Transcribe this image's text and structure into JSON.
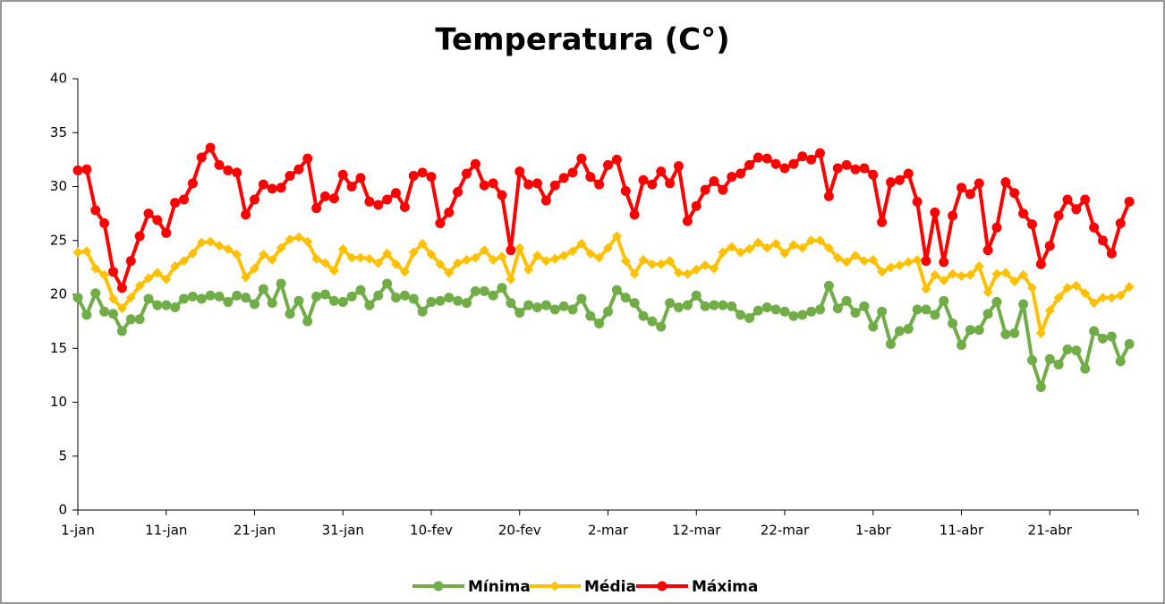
{
  "chart_data": {
    "type": "line",
    "title": "Temperatura (C°)",
    "categories": [
      "1-jan",
      null,
      null,
      null,
      null,
      null,
      null,
      null,
      null,
      null,
      "11-jan",
      null,
      null,
      null,
      null,
      null,
      null,
      null,
      null,
      null,
      "21-jan",
      null,
      null,
      null,
      null,
      null,
      null,
      null,
      null,
      null,
      "31-jan",
      null,
      null,
      null,
      null,
      null,
      null,
      null,
      null,
      null,
      "10-fev",
      null,
      null,
      null,
      null,
      null,
      null,
      null,
      null,
      null,
      "20-fev",
      null,
      null,
      null,
      null,
      null,
      null,
      null,
      null,
      null,
      "2-mar",
      null,
      null,
      null,
      null,
      null,
      null,
      null,
      null,
      null,
      "12-mar",
      null,
      null,
      null,
      null,
      null,
      null,
      null,
      null,
      null,
      "22-mar",
      null,
      null,
      null,
      null,
      null,
      null,
      null,
      null,
      null,
      "1-abr",
      null,
      null,
      null,
      null,
      null,
      null,
      null,
      null,
      null,
      "11-abr",
      null,
      null,
      null,
      null,
      null,
      null,
      null,
      null,
      null,
      "21-abr",
      null,
      null,
      null,
      null,
      null,
      null,
      null,
      null,
      null
    ],
    "series": [
      {
        "name": "Mínima",
        "color": "#70ad47",
        "marker": "circle",
        "values": [
          19.7,
          18.1,
          20.1,
          18.4,
          18.2,
          16.6,
          17.7,
          17.7,
          19.6,
          19.0,
          19.0,
          18.8,
          19.6,
          19.8,
          19.6,
          19.9,
          19.8,
          19.3,
          19.9,
          19.7,
          19.1,
          20.5,
          19.2,
          21.0,
          18.2,
          19.4,
          17.5,
          19.8,
          20.0,
          19.4,
          19.3,
          19.8,
          20.4,
          19.0,
          19.9,
          21.0,
          19.7,
          19.9,
          19.6,
          18.4,
          19.3,
          19.4,
          19.7,
          19.4,
          19.2,
          20.3,
          20.3,
          19.9,
          20.6,
          19.2,
          18.3,
          19.0,
          18.8,
          19.0,
          18.6,
          18.9,
          18.6,
          19.6,
          18.0,
          17.3,
          18.4,
          20.4,
          19.7,
          19.2,
          18.0,
          17.5,
          17.0,
          19.2,
          18.8,
          19.0,
          19.9,
          18.9,
          19.0,
          19.0,
          18.9,
          18.1,
          17.8,
          18.5,
          18.8,
          18.6,
          18.4,
          18.0,
          18.1,
          18.4,
          18.6,
          20.8,
          18.7,
          19.4,
          18.3,
          18.9,
          17.0,
          18.4,
          15.4,
          16.6,
          16.8,
          18.6,
          18.6,
          18.1,
          19.4,
          17.3,
          15.3,
          16.7,
          16.7,
          18.2,
          19.3,
          16.3,
          16.4,
          19.1,
          13.9,
          11.4,
          14.0,
          13.5,
          14.9,
          14.8,
          13.1,
          16.6,
          15.9,
          16.1,
          13.8,
          15.4
        ]
      },
      {
        "name": "Média",
        "color": "#ffc000",
        "marker": "diamond",
        "values": [
          23.9,
          24.0,
          22.4,
          21.8,
          19.6,
          18.7,
          19.7,
          20.8,
          21.5,
          22.0,
          21.4,
          22.6,
          23.1,
          23.8,
          24.8,
          24.9,
          24.5,
          24.2,
          23.7,
          21.6,
          22.4,
          23.7,
          23.2,
          24.3,
          25.1,
          25.3,
          24.9,
          23.3,
          22.9,
          22.2,
          24.2,
          23.4,
          23.4,
          23.3,
          22.9,
          23.8,
          22.8,
          22.1,
          23.9,
          24.7,
          23.7,
          22.8,
          22.0,
          22.9,
          23.2,
          23.4,
          24.1,
          23.2,
          23.5,
          21.4,
          24.3,
          22.3,
          23.6,
          23.1,
          23.3,
          23.6,
          24.0,
          24.7,
          23.8,
          23.4,
          24.3,
          25.4,
          23.1,
          21.9,
          23.2,
          22.8,
          22.8,
          23.1,
          22.0,
          21.9,
          22.3,
          22.7,
          22.4,
          23.9,
          24.4,
          23.9,
          24.2,
          24.8,
          24.3,
          24.7,
          23.8,
          24.6,
          24.3,
          25.0,
          25.0,
          24.3,
          23.4,
          23.0,
          23.6,
          23.1,
          23.2,
          22.1,
          22.5,
          22.7,
          23.0,
          23.2,
          20.5,
          21.8,
          21.3,
          21.9,
          21.7,
          21.8,
          22.6,
          20.2,
          21.9,
          22.0,
          21.2,
          21.8,
          20.6,
          16.4,
          18.5,
          19.7,
          20.6,
          20.8,
          20.1,
          19.2,
          19.7,
          19.7,
          19.9,
          20.7
        ]
      },
      {
        "name": "Máxima",
        "color": "#ff0000",
        "marker": "circle",
        "values": [
          31.5,
          31.6,
          27.8,
          26.6,
          22.1,
          20.6,
          23.1,
          25.4,
          27.5,
          26.9,
          25.7,
          28.5,
          28.8,
          30.3,
          32.7,
          33.6,
          32.0,
          31.5,
          31.3,
          27.4,
          28.8,
          30.2,
          29.8,
          29.9,
          31.0,
          31.6,
          32.6,
          28.0,
          29.1,
          28.9,
          31.1,
          30.0,
          30.8,
          28.6,
          28.3,
          28.8,
          29.4,
          28.1,
          31.0,
          31.3,
          30.9,
          26.6,
          27.6,
          29.5,
          31.2,
          32.1,
          30.1,
          30.3,
          29.2,
          24.1,
          31.4,
          30.2,
          30.3,
          28.7,
          30.1,
          30.8,
          31.3,
          32.6,
          30.9,
          30.2,
          32.0,
          32.5,
          29.6,
          27.4,
          30.6,
          30.2,
          31.4,
          30.3,
          31.9,
          26.8,
          28.2,
          29.7,
          30.5,
          29.7,
          30.9,
          31.2,
          32.0,
          32.7,
          32.6,
          32.1,
          31.7,
          32.1,
          32.8,
          32.5,
          33.1,
          29.1,
          31.7,
          32.0,
          31.6,
          31.7,
          31.1,
          26.7,
          30.4,
          30.6,
          31.2,
          28.6,
          23.1,
          27.6,
          23.0,
          27.3,
          29.9,
          29.3,
          30.3,
          24.1,
          26.2,
          30.4,
          29.4,
          27.5,
          26.5,
          22.8,
          24.5,
          27.3,
          28.8,
          27.9,
          28.8,
          26.2,
          25.0,
          23.8,
          26.6,
          28.6
        ]
      }
    ],
    "ylim": [
      0,
      40
    ],
    "yticks": [
      0,
      5,
      10,
      15,
      20,
      25,
      30,
      35,
      40
    ],
    "grid": false,
    "legend": "bottom"
  }
}
